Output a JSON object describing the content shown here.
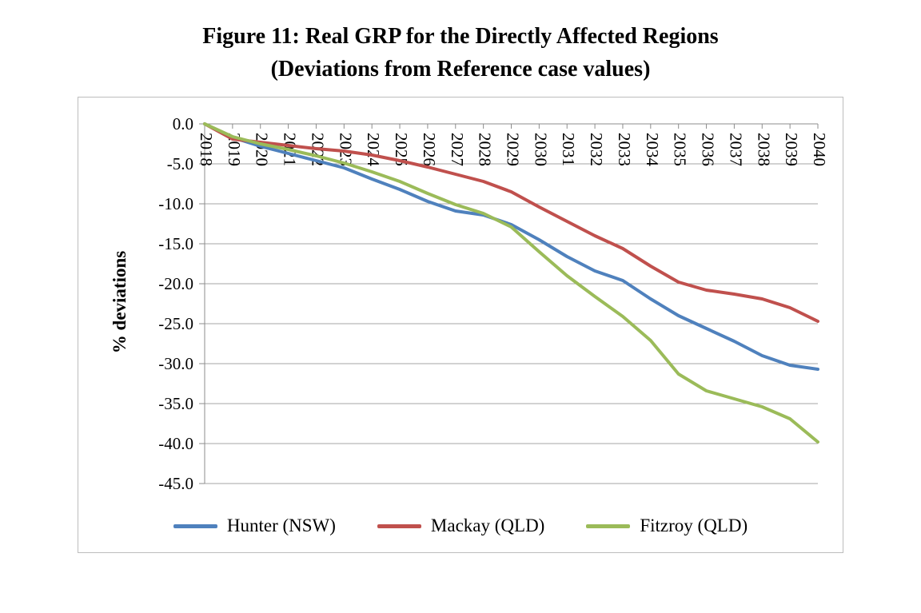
{
  "figure": {
    "title_line1": "Figure 11: Real GRP for the Directly Affected Regions",
    "title_line2": "(Deviations from Reference case values)"
  },
  "chart_data": {
    "type": "line",
    "title": "Figure 11: Real GRP for the Directly Affected Regions (Deviations from Reference case values)",
    "xlabel": "",
    "ylabel": "% deviations",
    "ylim": [
      -45,
      0
    ],
    "ytick_step": 5,
    "yticks": [
      "0.0",
      "-5.0",
      "-10.0",
      "-15.0",
      "-20.0",
      "-25.0",
      "-30.0",
      "-35.0",
      "-40.0",
      "-45.0"
    ],
    "grid": "horizontal",
    "x_axis_position": "top",
    "x_label_rotation": 90,
    "legend_position": "bottom",
    "categories": [
      "2018",
      "2019",
      "2020",
      "2021",
      "2022",
      "2023",
      "2024",
      "2025",
      "2026",
      "2027",
      "2028",
      "2029",
      "2030",
      "2031",
      "2032",
      "2033",
      "2034",
      "2035",
      "2036",
      "2037",
      "2038",
      "2039",
      "2040"
    ],
    "series": [
      {
        "name": "Hunter (NSW)",
        "color": "#4F81BD",
        "values": [
          0.0,
          -1.7,
          -2.8,
          -3.7,
          -4.6,
          -5.5,
          -6.9,
          -8.2,
          -9.7,
          -10.9,
          -11.4,
          -12.6,
          -14.5,
          -16.6,
          -18.4,
          -19.6,
          -21.9,
          -24.0,
          -25.6,
          -27.2,
          -29.0,
          -30.2,
          -30.7
        ]
      },
      {
        "name": "Mackay (QLD)",
        "color": "#C0504D",
        "values": [
          0.0,
          -1.9,
          -2.3,
          -2.7,
          -3.1,
          -3.4,
          -3.9,
          -4.6,
          -5.4,
          -6.3,
          -7.2,
          -8.5,
          -10.4,
          -12.2,
          -14.0,
          -15.6,
          -17.8,
          -19.8,
          -20.8,
          -21.3,
          -21.9,
          -23.0,
          -24.7
        ]
      },
      {
        "name": "Fitzroy (QLD)",
        "color": "#9BBB59",
        "values": [
          0.0,
          -1.6,
          -2.5,
          -3.2,
          -4.0,
          -4.9,
          -6.0,
          -7.2,
          -8.7,
          -10.1,
          -11.2,
          -12.9,
          -16.0,
          -19.0,
          -21.6,
          -24.1,
          -27.1,
          -31.3,
          -33.4,
          -34.4,
          -35.4,
          -36.9,
          -39.8
        ]
      }
    ],
    "colors": {
      "gridline": "#a6a6a6",
      "axis": "#8c8c8c",
      "border": "#bdbdbd"
    }
  }
}
